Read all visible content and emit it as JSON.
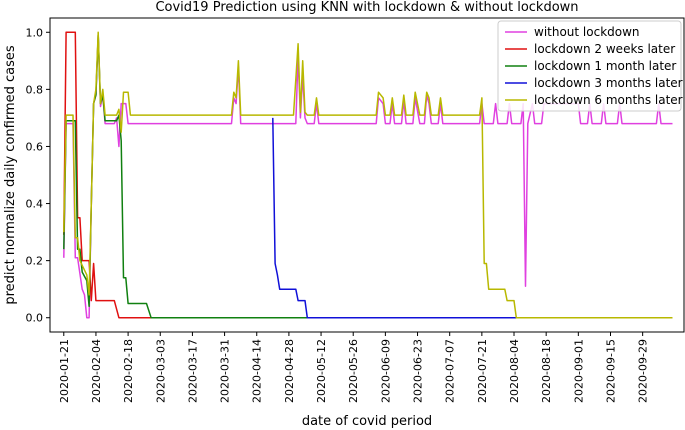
{
  "chart_data": {
    "type": "line",
    "title": "Covid19 Prediction using KNN with lockdown & without lockdown",
    "xlabel": "date of covid period",
    "ylabel": "predict normalize daily confirmed cases",
    "xlim": [
      "2020-01-15",
      "2020-10-17"
    ],
    "ylim": [
      -0.05,
      1.05
    ],
    "x_ticks": [
      "2020-01-21",
      "2020-02-04",
      "2020-02-18",
      "2020-03-03",
      "2020-03-17",
      "2020-03-31",
      "2020-04-14",
      "2020-04-28",
      "2020-05-12",
      "2020-05-26",
      "2020-06-09",
      "2020-06-23",
      "2020-07-07",
      "2020-07-21",
      "2020-08-04",
      "2020-08-18",
      "2020-09-01",
      "2020-09-15",
      "2020-09-29"
    ],
    "y_ticks": [
      "0.0",
      "0.2",
      "0.4",
      "0.6",
      "0.8",
      "1.0"
    ],
    "grid": false,
    "legend_position": "top-right",
    "series": [
      {
        "name": "without lockdown",
        "color": "#e040e0",
        "points": [
          [
            "2020-01-21",
            0.21
          ],
          [
            "2020-01-22",
            0.68
          ],
          [
            "2020-01-25",
            0.68
          ],
          [
            "2020-01-26",
            0.21
          ],
          [
            "2020-01-27",
            0.21
          ],
          [
            "2020-01-29",
            0.1
          ],
          [
            "2020-01-30",
            0.08
          ],
          [
            "2020-01-31",
            0.0
          ],
          [
            "2020-02-01",
            0.0
          ],
          [
            "2020-02-02",
            0.4
          ],
          [
            "2020-02-03",
            0.75
          ],
          [
            "2020-02-04",
            0.78
          ],
          [
            "2020-02-05",
            0.99
          ],
          [
            "2020-02-06",
            0.74
          ],
          [
            "2020-02-07",
            0.78
          ],
          [
            "2020-02-08",
            0.68
          ],
          [
            "2020-02-12",
            0.68
          ],
          [
            "2020-02-13",
            0.7
          ],
          [
            "2020-02-14",
            0.6
          ],
          [
            "2020-02-15",
            0.75
          ],
          [
            "2020-02-17",
            0.75
          ],
          [
            "2020-02-18",
            0.68
          ],
          [
            "2020-04-03",
            0.68
          ],
          [
            "2020-04-04",
            0.77
          ],
          [
            "2020-04-05",
            0.75
          ],
          [
            "2020-04-06",
            0.88
          ],
          [
            "2020-04-07",
            0.68
          ],
          [
            "2020-05-01",
            0.68
          ],
          [
            "2020-05-02",
            0.92
          ],
          [
            "2020-05-03",
            0.7
          ],
          [
            "2020-05-04",
            0.85
          ],
          [
            "2020-05-05",
            0.7
          ],
          [
            "2020-05-06",
            0.68
          ],
          [
            "2020-05-09",
            0.68
          ],
          [
            "2020-05-10",
            0.75
          ],
          [
            "2020-05-11",
            0.68
          ],
          [
            "2020-06-05",
            0.68
          ],
          [
            "2020-06-06",
            0.77
          ],
          [
            "2020-06-08",
            0.75
          ],
          [
            "2020-06-09",
            0.68
          ],
          [
            "2020-06-11",
            0.68
          ],
          [
            "2020-06-12",
            0.75
          ],
          [
            "2020-06-13",
            0.68
          ],
          [
            "2020-06-16",
            0.68
          ],
          [
            "2020-06-17",
            0.76
          ],
          [
            "2020-06-18",
            0.68
          ],
          [
            "2020-06-21",
            0.68
          ],
          [
            "2020-06-22",
            0.77
          ],
          [
            "2020-06-24",
            0.68
          ],
          [
            "2020-06-26",
            0.68
          ],
          [
            "2020-06-27",
            0.78
          ],
          [
            "2020-06-28",
            0.75
          ],
          [
            "2020-06-29",
            0.68
          ],
          [
            "2020-07-02",
            0.68
          ],
          [
            "2020-07-03",
            0.75
          ],
          [
            "2020-07-04",
            0.68
          ],
          [
            "2020-07-20",
            0.68
          ],
          [
            "2020-07-21",
            0.75
          ],
          [
            "2020-07-22",
            0.68
          ],
          [
            "2020-07-26",
            0.68
          ],
          [
            "2020-07-27",
            0.75
          ],
          [
            "2020-07-28",
            0.68
          ],
          [
            "2020-08-01",
            0.68
          ],
          [
            "2020-08-02",
            0.75
          ],
          [
            "2020-08-03",
            0.68
          ],
          [
            "2020-08-07",
            0.68
          ],
          [
            "2020-08-08",
            0.75
          ],
          [
            "2020-08-09",
            0.11
          ],
          [
            "2020-08-10",
            0.68
          ],
          [
            "2020-08-12",
            0.75
          ],
          [
            "2020-08-13",
            0.68
          ],
          [
            "2020-08-16",
            0.68
          ],
          [
            "2020-08-17",
            0.75
          ],
          [
            "2020-09-01",
            0.75
          ],
          [
            "2020-09-02",
            0.68
          ],
          [
            "2020-09-05",
            0.68
          ],
          [
            "2020-09-06",
            0.75
          ],
          [
            "2020-09-07",
            0.68
          ],
          [
            "2020-09-11",
            0.68
          ],
          [
            "2020-09-12",
            0.75
          ],
          [
            "2020-09-13",
            0.68
          ],
          [
            "2020-09-18",
            0.68
          ],
          [
            "2020-09-19",
            0.75
          ],
          [
            "2020-09-20",
            0.68
          ],
          [
            "2020-10-05",
            0.68
          ],
          [
            "2020-10-06",
            0.75
          ],
          [
            "2020-10-07",
            0.68
          ],
          [
            "2020-10-12",
            0.68
          ]
        ]
      },
      {
        "name": "lockdown 2 weeks later",
        "color": "#e01010",
        "points": [
          [
            "2020-01-21",
            0.29
          ],
          [
            "2020-01-22",
            1.0
          ],
          [
            "2020-01-26",
            1.0
          ],
          [
            "2020-01-27",
            0.35
          ],
          [
            "2020-01-28",
            0.35
          ],
          [
            "2020-01-29",
            0.2
          ],
          [
            "2020-02-01",
            0.2
          ],
          [
            "2020-02-02",
            0.06
          ],
          [
            "2020-02-03",
            0.19
          ],
          [
            "2020-02-04",
            0.06
          ],
          [
            "2020-02-12",
            0.06
          ],
          [
            "2020-02-14",
            0.0
          ],
          [
            "2020-10-12",
            0.0
          ]
        ]
      },
      {
        "name": "lockdown 1 month later",
        "color": "#108010",
        "points": [
          [
            "2020-01-21",
            0.24
          ],
          [
            "2020-01-22",
            0.69
          ],
          [
            "2020-01-26",
            0.69
          ],
          [
            "2020-01-27",
            0.24
          ],
          [
            "2020-01-28",
            0.24
          ],
          [
            "2020-01-29",
            0.16
          ],
          [
            "2020-01-31",
            0.13
          ],
          [
            "2020-02-01",
            0.04
          ],
          [
            "2020-02-02",
            0.4
          ],
          [
            "2020-02-03",
            0.75
          ],
          [
            "2020-02-04",
            0.78
          ],
          [
            "2020-02-05",
            0.99
          ],
          [
            "2020-02-06",
            0.75
          ],
          [
            "2020-02-07",
            0.78
          ],
          [
            "2020-02-08",
            0.69
          ],
          [
            "2020-02-13",
            0.69
          ],
          [
            "2020-02-14",
            0.71
          ],
          [
            "2020-02-15",
            0.62
          ],
          [
            "2020-02-16",
            0.14
          ],
          [
            "2020-02-17",
            0.14
          ],
          [
            "2020-02-18",
            0.05
          ],
          [
            "2020-02-26",
            0.05
          ],
          [
            "2020-02-28",
            0.0
          ],
          [
            "2020-10-12",
            0.0
          ]
        ]
      },
      {
        "name": "lockdown 3 months later",
        "color": "#1010d8",
        "points": [
          [
            "2020-04-21",
            0.7
          ],
          [
            "2020-04-22",
            0.19
          ],
          [
            "2020-04-23",
            0.15
          ],
          [
            "2020-04-24",
            0.1
          ],
          [
            "2020-05-01",
            0.1
          ],
          [
            "2020-05-02",
            0.06
          ],
          [
            "2020-05-05",
            0.06
          ],
          [
            "2020-05-06",
            0.0
          ],
          [
            "2020-10-12",
            0.0
          ]
        ]
      },
      {
        "name": "lockdown 6 months later",
        "color": "#b8b800",
        "points": [
          [
            "2020-01-21",
            0.3
          ],
          [
            "2020-01-22",
            0.71
          ],
          [
            "2020-01-25",
            0.71
          ],
          [
            "2020-01-26",
            0.28
          ],
          [
            "2020-01-27",
            0.28
          ],
          [
            "2020-01-28",
            0.2
          ],
          [
            "2020-01-31",
            0.15
          ],
          [
            "2020-02-01",
            0.08
          ],
          [
            "2020-02-02",
            0.4
          ],
          [
            "2020-02-03",
            0.75
          ],
          [
            "2020-02-04",
            0.8
          ],
          [
            "2020-02-05",
            1.0
          ],
          [
            "2020-02-06",
            0.75
          ],
          [
            "2020-02-07",
            0.8
          ],
          [
            "2020-02-08",
            0.71
          ],
          [
            "2020-02-13",
            0.71
          ],
          [
            "2020-02-14",
            0.73
          ],
          [
            "2020-02-15",
            0.65
          ],
          [
            "2020-02-16",
            0.79
          ],
          [
            "2020-02-18",
            0.79
          ],
          [
            "2020-02-19",
            0.71
          ],
          [
            "2020-04-03",
            0.71
          ],
          [
            "2020-04-04",
            0.79
          ],
          [
            "2020-04-05",
            0.77
          ],
          [
            "2020-04-06",
            0.9
          ],
          [
            "2020-04-07",
            0.71
          ],
          [
            "2020-04-30",
            0.71
          ],
          [
            "2020-05-02",
            0.96
          ],
          [
            "2020-05-03",
            0.72
          ],
          [
            "2020-05-04",
            0.9
          ],
          [
            "2020-05-05",
            0.72
          ],
          [
            "2020-05-06",
            0.71
          ],
          [
            "2020-05-09",
            0.71
          ],
          [
            "2020-05-10",
            0.77
          ],
          [
            "2020-05-11",
            0.71
          ],
          [
            "2020-06-05",
            0.71
          ],
          [
            "2020-06-06",
            0.79
          ],
          [
            "2020-06-08",
            0.77
          ],
          [
            "2020-06-09",
            0.71
          ],
          [
            "2020-06-11",
            0.71
          ],
          [
            "2020-06-12",
            0.77
          ],
          [
            "2020-06-13",
            0.71
          ],
          [
            "2020-06-16",
            0.71
          ],
          [
            "2020-06-17",
            0.78
          ],
          [
            "2020-06-18",
            0.71
          ],
          [
            "2020-06-21",
            0.71
          ],
          [
            "2020-06-22",
            0.79
          ],
          [
            "2020-06-24",
            0.71
          ],
          [
            "2020-06-26",
            0.71
          ],
          [
            "2020-06-27",
            0.79
          ],
          [
            "2020-06-28",
            0.77
          ],
          [
            "2020-06-29",
            0.71
          ],
          [
            "2020-07-02",
            0.71
          ],
          [
            "2020-07-03",
            0.77
          ],
          [
            "2020-07-04",
            0.71
          ],
          [
            "2020-07-20",
            0.71
          ],
          [
            "2020-07-21",
            0.77
          ],
          [
            "2020-07-22",
            0.19
          ],
          [
            "2020-07-23",
            0.19
          ],
          [
            "2020-07-24",
            0.1
          ],
          [
            "2020-07-31",
            0.1
          ],
          [
            "2020-08-01",
            0.06
          ],
          [
            "2020-08-04",
            0.06
          ],
          [
            "2020-08-05",
            0.0
          ],
          [
            "2020-10-12",
            0.0
          ]
        ]
      }
    ]
  }
}
